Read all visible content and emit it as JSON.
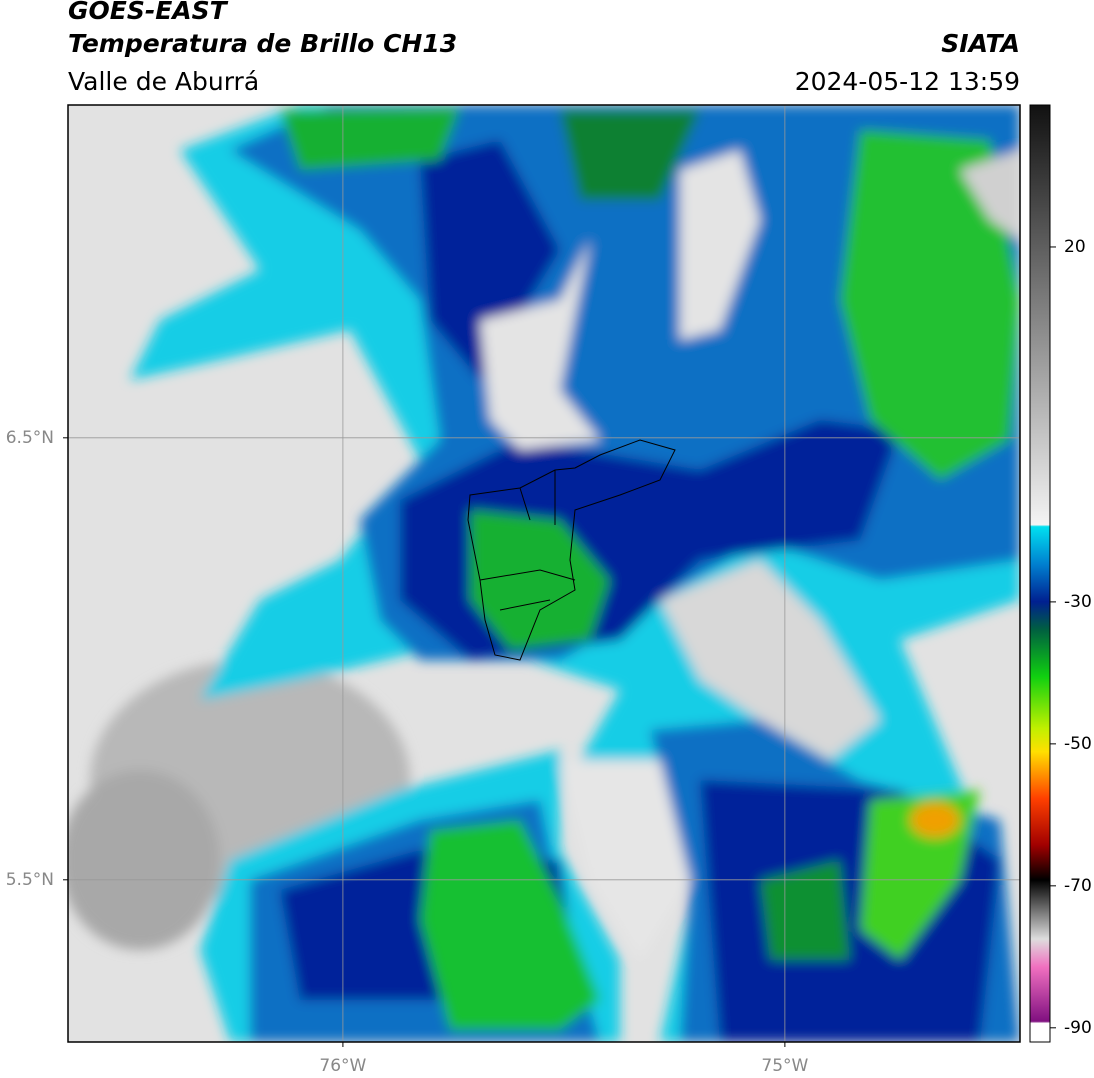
{
  "header": {
    "title": "GOES-EAST",
    "subtitle": "Temperatura de Brillo CH13",
    "region": "Valle de Aburrá",
    "source": "SIATA",
    "datetime": "2024-05-12 13:59"
  },
  "map": {
    "lonlim": [
      -76.622,
      -74.468
    ],
    "latlim": [
      5.133,
      7.253
    ],
    "lat_ticks": [
      {
        "value": 6.5,
        "label": "6.5°N"
      },
      {
        "value": 5.5,
        "label": "5.5°N"
      }
    ],
    "lon_ticks": [
      {
        "value": -76,
        "label": "76°W"
      },
      {
        "value": -75,
        "label": "75°W"
      }
    ]
  },
  "colorbar": {
    "lim": [
      -92,
      40
    ],
    "ticks": [
      20,
      -30,
      -50,
      -70,
      -90
    ]
  }
}
